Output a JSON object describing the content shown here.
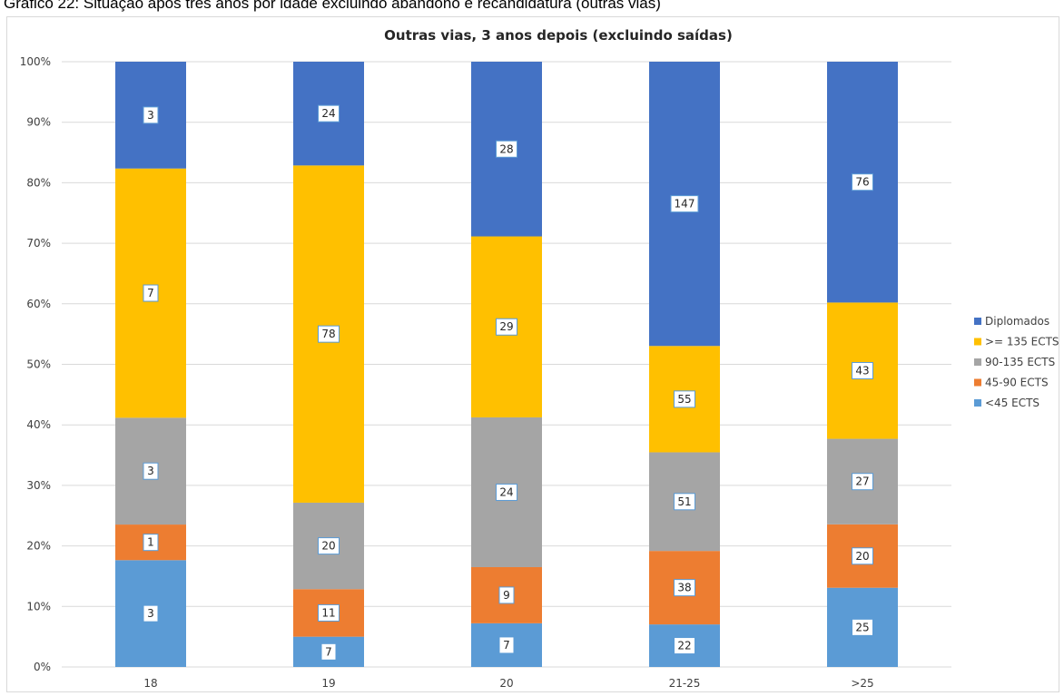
{
  "caption": "Gráfico 22: Situação após três anos por idade excluindo abandono e recandidatura (outras vias)",
  "chart_data": {
    "type": "bar",
    "stacked": true,
    "normalized": true,
    "title": "Outras vias, 3 anos depois (excluindo saídas)",
    "categories": [
      "18",
      "19",
      "20",
      "21-25",
      ">25"
    ],
    "y_ticks": [
      "0%",
      "10%",
      "20%",
      "30%",
      "40%",
      "50%",
      "60%",
      "70%",
      "80%",
      "90%",
      "100%"
    ],
    "ylim": [
      0,
      100
    ],
    "grid": true,
    "legend_position": "right",
    "series": [
      {
        "name": "<45 ECTS",
        "color": "#5B9BD5",
        "values": [
          3,
          7,
          7,
          22,
          25
        ]
      },
      {
        "name": "45-90 ECTS",
        "color": "#ED7D31",
        "values": [
          1,
          11,
          9,
          38,
          20
        ]
      },
      {
        "name": "90-135 ECTS",
        "color": "#A5A5A5",
        "values": [
          3,
          20,
          24,
          51,
          27
        ]
      },
      {
        "name": ">= 135 ECTS",
        "color": "#FFC000",
        "values": [
          7,
          78,
          29,
          55,
          43
        ]
      },
      {
        "name": "Diplomados",
        "color": "#4472C4",
        "values": [
          3,
          24,
          28,
          147,
          76
        ]
      }
    ]
  }
}
